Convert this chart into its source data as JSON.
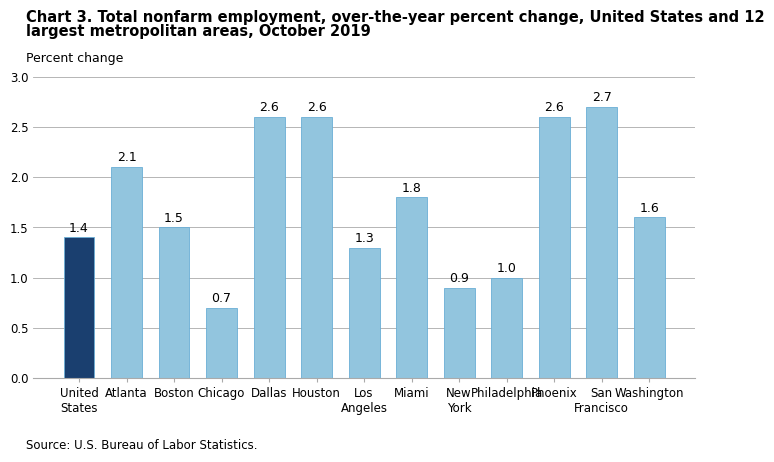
{
  "title_line1": "Chart 3. Total nonfarm employment, over-the-year percent change, United States and 12",
  "title_line2": "largest metropolitan areas, October 2019",
  "ylabel_text": "Percent change",
  "source": "Source: U.S. Bureau of Labor Statistics.",
  "categories": [
    "United\nStates",
    "Atlanta",
    "Boston",
    "Chicago",
    "Dallas",
    "Houston",
    "Los\nAngeles",
    "Miami",
    "New\nYork",
    "Philadelphia",
    "Phoenix",
    "San\nFrancisco",
    "Washington"
  ],
  "values": [
    1.4,
    2.1,
    1.5,
    0.7,
    2.6,
    2.6,
    1.3,
    1.8,
    0.9,
    1.0,
    2.6,
    2.7,
    1.6
  ],
  "bar_colors": [
    "#1a3f6f",
    "#92c5de",
    "#92c5de",
    "#92c5de",
    "#92c5de",
    "#92c5de",
    "#92c5de",
    "#92c5de",
    "#92c5de",
    "#92c5de",
    "#92c5de",
    "#92c5de",
    "#92c5de"
  ],
  "bar_edge_color": "#6aaed6",
  "ylim": [
    0,
    3.0
  ],
  "yticks": [
    0.0,
    0.5,
    1.0,
    1.5,
    2.0,
    2.5,
    3.0
  ],
  "title_fontsize": 10.5,
  "ylabel_fontsize": 9,
  "tick_fontsize": 8.5,
  "value_fontsize": 9,
  "source_fontsize": 8.5
}
